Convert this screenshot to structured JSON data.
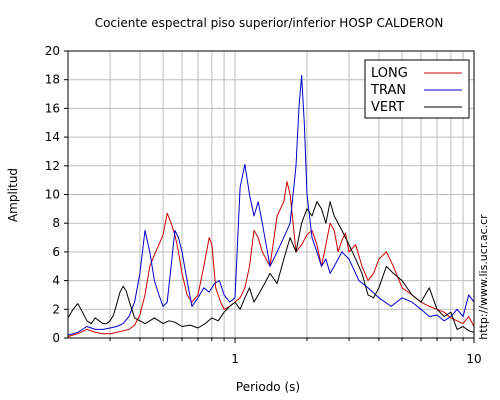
{
  "chart_data": {
    "type": "line",
    "title": "Cociente espectral piso superior/inferior  HOSP CALDERON",
    "xlabel": "Periodo (s)",
    "ylabel": "Amplitud",
    "x_scale": "log",
    "xlim": [
      0.2,
      10
    ],
    "ylim": [
      0,
      20
    ],
    "xticks": [
      {
        "value": 1,
        "label": "1"
      },
      {
        "value": 10,
        "label": "10"
      }
    ],
    "yticks": [
      0,
      2,
      4,
      6,
      8,
      10,
      12,
      14,
      16,
      18,
      20
    ],
    "grid": true,
    "legend_position": "top-right",
    "side_text": "http://www.lis.ucr.ac.cr",
    "series": [
      {
        "name": "LONG",
        "color": "#cc0000",
        "points": [
          [
            0.2,
            0.1
          ],
          [
            0.22,
            0.3
          ],
          [
            0.24,
            0.6
          ],
          [
            0.26,
            0.4
          ],
          [
            0.28,
            0.3
          ],
          [
            0.3,
            0.3
          ],
          [
            0.32,
            0.4
          ],
          [
            0.34,
            0.5
          ],
          [
            0.36,
            0.6
          ],
          [
            0.38,
            0.9
          ],
          [
            0.4,
            1.6
          ],
          [
            0.42,
            3.0
          ],
          [
            0.44,
            5.0
          ],
          [
            0.46,
            5.8
          ],
          [
            0.48,
            6.5
          ],
          [
            0.5,
            7.2
          ],
          [
            0.52,
            8.7
          ],
          [
            0.54,
            8.0
          ],
          [
            0.56,
            7.2
          ],
          [
            0.58,
            6.0
          ],
          [
            0.6,
            4.5
          ],
          [
            0.63,
            3.0
          ],
          [
            0.66,
            2.5
          ],
          [
            0.7,
            3.0
          ],
          [
            0.74,
            5.0
          ],
          [
            0.78,
            7.0
          ],
          [
            0.8,
            6.5
          ],
          [
            0.83,
            3.5
          ],
          [
            0.87,
            2.5
          ],
          [
            0.9,
            2.0
          ],
          [
            0.95,
            2.2
          ],
          [
            1.0,
            2.5
          ],
          [
            1.05,
            2.8
          ],
          [
            1.1,
            3.5
          ],
          [
            1.15,
            5.0
          ],
          [
            1.2,
            7.5
          ],
          [
            1.25,
            7.0
          ],
          [
            1.3,
            6.0
          ],
          [
            1.4,
            5.0
          ],
          [
            1.5,
            8.5
          ],
          [
            1.6,
            9.5
          ],
          [
            1.65,
            10.9
          ],
          [
            1.7,
            10.0
          ],
          [
            1.75,
            8.0
          ],
          [
            1.8,
            6.0
          ],
          [
            1.9,
            6.5
          ],
          [
            2.0,
            7.2
          ],
          [
            2.1,
            7.5
          ],
          [
            2.2,
            6.5
          ],
          [
            2.3,
            5.0
          ],
          [
            2.4,
            6.5
          ],
          [
            2.5,
            8.0
          ],
          [
            2.6,
            7.5
          ],
          [
            2.7,
            6.0
          ],
          [
            2.8,
            6.8
          ],
          [
            2.9,
            7.3
          ],
          [
            3.0,
            6.0
          ],
          [
            3.2,
            6.5
          ],
          [
            3.4,
            5.0
          ],
          [
            3.6,
            4.0
          ],
          [
            3.8,
            4.5
          ],
          [
            4.0,
            5.5
          ],
          [
            4.3,
            6.0
          ],
          [
            4.6,
            5.0
          ],
          [
            5.0,
            3.5
          ],
          [
            5.5,
            3.0
          ],
          [
            6.0,
            2.5
          ],
          [
            6.5,
            2.2
          ],
          [
            7.0,
            2.0
          ],
          [
            7.5,
            1.8
          ],
          [
            8.0,
            1.4
          ],
          [
            8.5,
            1.2
          ],
          [
            9.0,
            1.0
          ],
          [
            9.5,
            1.5
          ],
          [
            10.0,
            0.8
          ]
        ]
      },
      {
        "name": "TRAN",
        "color": "#0000cc",
        "points": [
          [
            0.2,
            0.2
          ],
          [
            0.22,
            0.4
          ],
          [
            0.24,
            0.8
          ],
          [
            0.26,
            0.6
          ],
          [
            0.28,
            0.6
          ],
          [
            0.3,
            0.7
          ],
          [
            0.32,
            0.8
          ],
          [
            0.34,
            1.0
          ],
          [
            0.36,
            1.5
          ],
          [
            0.38,
            2.5
          ],
          [
            0.4,
            4.5
          ],
          [
            0.42,
            7.5
          ],
          [
            0.44,
            6.0
          ],
          [
            0.46,
            4.0
          ],
          [
            0.48,
            3.0
          ],
          [
            0.5,
            2.2
          ],
          [
            0.52,
            2.5
          ],
          [
            0.54,
            5.0
          ],
          [
            0.56,
            7.5
          ],
          [
            0.58,
            7.0
          ],
          [
            0.6,
            6.0
          ],
          [
            0.63,
            4.0
          ],
          [
            0.66,
            2.2
          ],
          [
            0.7,
            2.8
          ],
          [
            0.74,
            3.5
          ],
          [
            0.78,
            3.2
          ],
          [
            0.82,
            3.8
          ],
          [
            0.86,
            4.0
          ],
          [
            0.9,
            3.0
          ],
          [
            0.95,
            2.5
          ],
          [
            1.0,
            2.8
          ],
          [
            1.05,
            10.5
          ],
          [
            1.1,
            12.1
          ],
          [
            1.15,
            10.0
          ],
          [
            1.2,
            8.5
          ],
          [
            1.25,
            9.5
          ],
          [
            1.3,
            8.0
          ],
          [
            1.4,
            5.0
          ],
          [
            1.5,
            6.0
          ],
          [
            1.6,
            7.0
          ],
          [
            1.7,
            8.0
          ],
          [
            1.8,
            12.0
          ],
          [
            1.85,
            16.0
          ],
          [
            1.9,
            18.3
          ],
          [
            1.95,
            15.0
          ],
          [
            2.0,
            10.0
          ],
          [
            2.1,
            7.0
          ],
          [
            2.2,
            6.0
          ],
          [
            2.3,
            5.0
          ],
          [
            2.4,
            5.5
          ],
          [
            2.5,
            4.5
          ],
          [
            2.6,
            5.0
          ],
          [
            2.8,
            6.0
          ],
          [
            3.0,
            5.5
          ],
          [
            3.3,
            4.0
          ],
          [
            3.6,
            3.5
          ],
          [
            4.0,
            2.8
          ],
          [
            4.5,
            2.2
          ],
          [
            5.0,
            2.8
          ],
          [
            5.5,
            2.5
          ],
          [
            6.0,
            2.0
          ],
          [
            6.5,
            1.5
          ],
          [
            7.0,
            1.6
          ],
          [
            7.5,
            1.2
          ],
          [
            8.0,
            1.5
          ],
          [
            8.5,
            2.0
          ],
          [
            9.0,
            1.5
          ],
          [
            9.5,
            3.0
          ],
          [
            10.0,
            2.5
          ]
        ]
      },
      {
        "name": "VERT",
        "color": "#000000",
        "points": [
          [
            0.2,
            1.4
          ],
          [
            0.21,
            2.0
          ],
          [
            0.22,
            2.4
          ],
          [
            0.23,
            1.8
          ],
          [
            0.24,
            1.2
          ],
          [
            0.25,
            1.0
          ],
          [
            0.26,
            1.4
          ],
          [
            0.27,
            1.2
          ],
          [
            0.28,
            1.0
          ],
          [
            0.29,
            1.0
          ],
          [
            0.3,
            1.2
          ],
          [
            0.31,
            1.6
          ],
          [
            0.32,
            2.4
          ],
          [
            0.33,
            3.2
          ],
          [
            0.34,
            3.6
          ],
          [
            0.35,
            3.3
          ],
          [
            0.36,
            2.6
          ],
          [
            0.37,
            2.0
          ],
          [
            0.38,
            1.4
          ],
          [
            0.4,
            1.2
          ],
          [
            0.42,
            1.0
          ],
          [
            0.44,
            1.2
          ],
          [
            0.46,
            1.4
          ],
          [
            0.48,
            1.2
          ],
          [
            0.5,
            1.0
          ],
          [
            0.53,
            1.2
          ],
          [
            0.56,
            1.1
          ],
          [
            0.6,
            0.8
          ],
          [
            0.65,
            0.9
          ],
          [
            0.7,
            0.7
          ],
          [
            0.75,
            1.0
          ],
          [
            0.8,
            1.4
          ],
          [
            0.85,
            1.2
          ],
          [
            0.9,
            1.8
          ],
          [
            0.95,
            2.2
          ],
          [
            1.0,
            2.5
          ],
          [
            1.05,
            2.0
          ],
          [
            1.1,
            2.8
          ],
          [
            1.15,
            3.5
          ],
          [
            1.2,
            2.5
          ],
          [
            1.3,
            3.5
          ],
          [
            1.4,
            4.5
          ],
          [
            1.5,
            3.8
          ],
          [
            1.6,
            5.5
          ],
          [
            1.7,
            7.0
          ],
          [
            1.8,
            6.0
          ],
          [
            1.9,
            8.0
          ],
          [
            2.0,
            9.0
          ],
          [
            2.1,
            8.5
          ],
          [
            2.2,
            9.5
          ],
          [
            2.3,
            9.0
          ],
          [
            2.4,
            8.0
          ],
          [
            2.5,
            9.5
          ],
          [
            2.6,
            8.5
          ],
          [
            2.7,
            8.0
          ],
          [
            2.8,
            7.5
          ],
          [
            3.0,
            6.5
          ],
          [
            3.2,
            5.5
          ],
          [
            3.4,
            4.5
          ],
          [
            3.6,
            3.0
          ],
          [
            3.8,
            2.8
          ],
          [
            4.0,
            3.5
          ],
          [
            4.3,
            5.0
          ],
          [
            4.6,
            4.5
          ],
          [
            5.0,
            4.0
          ],
          [
            5.5,
            3.0
          ],
          [
            6.0,
            2.5
          ],
          [
            6.5,
            3.5
          ],
          [
            7.0,
            2.0
          ],
          [
            7.5,
            1.5
          ],
          [
            8.0,
            1.8
          ],
          [
            8.5,
            0.6
          ],
          [
            9.0,
            0.8
          ],
          [
            9.5,
            0.5
          ],
          [
            10.0,
            0.4
          ]
        ]
      }
    ]
  }
}
